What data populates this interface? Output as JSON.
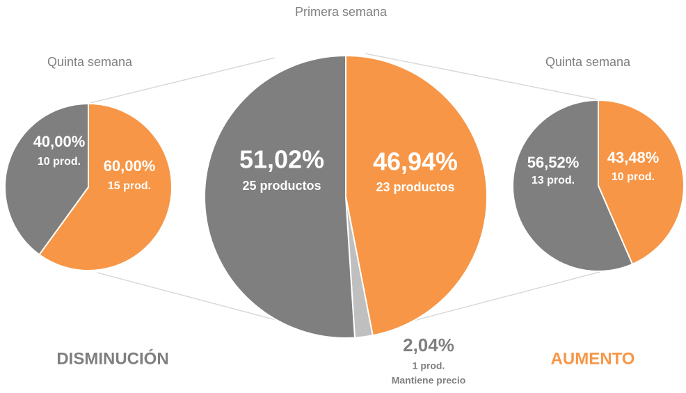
{
  "chart_data": [
    {
      "type": "pie",
      "title": "Quinta semana",
      "categories": [
        null,
        null
      ],
      "values": [
        60,
        40
      ],
      "value_labels": [
        "60,00%",
        "40,00%"
      ],
      "product_labels": [
        "15 prod.",
        "10 prod."
      ],
      "colors": [
        "#f79646",
        "#7f7f7f"
      ],
      "annotation": "DISMINUCIÓN",
      "annotation_color": "#7f7f7f"
    },
    {
      "type": "pie",
      "title": "Primera semana",
      "categories": [
        null,
        "Mantiene precio",
        null
      ],
      "values": [
        46.94,
        2.04,
        51.02
      ],
      "value_labels": [
        "46,94%",
        "2,04%",
        "51,02%"
      ],
      "product_labels": [
        "23 productos",
        "1 prod.",
        "25 productos"
      ],
      "colors": [
        "#f79646",
        "#bfbfbf",
        "#7f7f7f"
      ]
    },
    {
      "type": "pie",
      "title": "Quinta semana",
      "categories": [
        null,
        null
      ],
      "values": [
        43.48,
        56.52
      ],
      "value_labels": [
        "43,48%",
        "56,52%"
      ],
      "product_labels": [
        "10 prod.",
        "13 prod."
      ],
      "colors": [
        "#f79646",
        "#7f7f7f"
      ],
      "annotation": "AUMENTO",
      "annotation_color": "#f79646"
    }
  ]
}
